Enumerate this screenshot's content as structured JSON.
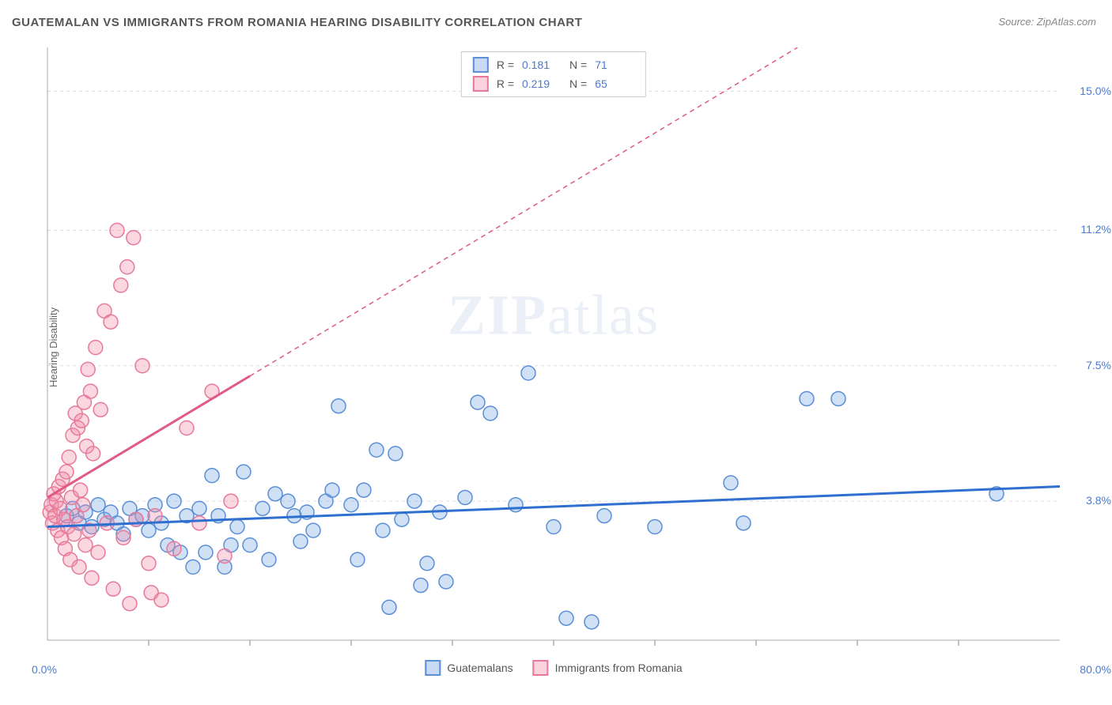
{
  "title": "GUATEMALAN VS IMMIGRANTS FROM ROMANIA HEARING DISABILITY CORRELATION CHART",
  "source": "Source: ZipAtlas.com",
  "watermark_bold": "ZIP",
  "watermark_light": "atlas",
  "chart": {
    "type": "scatter",
    "ylabel": "Hearing Disability",
    "background_color": "#ffffff",
    "grid_color": "#dddddd",
    "axis_color": "#aaaaaa",
    "tick_color": "#888888",
    "label_fontsize": 13,
    "tick_fontsize": 14,
    "value_color": "#4a7bd0",
    "xlim": [
      0,
      80
    ],
    "ylim": [
      0,
      16.2
    ],
    "x_tick_min": "0.0%",
    "x_tick_max": "80.0%",
    "x_minor_ticks": [
      8,
      16,
      24,
      32,
      40,
      48,
      56,
      64,
      72
    ],
    "y_ticks": [
      {
        "v": 3.8,
        "label": "3.8%"
      },
      {
        "v": 7.5,
        "label": "7.5%"
      },
      {
        "v": 11.2,
        "label": "11.2%"
      },
      {
        "v": 15.0,
        "label": "15.0%"
      }
    ],
    "marker_radius": 9,
    "marker_stroke_width": 1.5,
    "trend_line_width": 3,
    "trend_dash": "6,5",
    "series": [
      {
        "name": "Guatemalans",
        "fill": "rgba(120,165,225,0.35)",
        "stroke": "#5b8fd6",
        "trend_stroke": "#2f6fd0",
        "R": "0.181",
        "N": "71",
        "trend": {
          "x1": 0,
          "y1": 3.1,
          "x2": 80,
          "y2": 4.2,
          "dash_from_x": null
        },
        "points": [
          [
            1.5,
            3.4
          ],
          [
            2.0,
            3.6
          ],
          [
            2.5,
            3.2
          ],
          [
            3.0,
            3.5
          ],
          [
            3.5,
            3.1
          ],
          [
            4.0,
            3.7
          ],
          [
            4.5,
            3.3
          ],
          [
            5.0,
            3.5
          ],
          [
            5.5,
            3.2
          ],
          [
            6.0,
            2.9
          ],
          [
            6.5,
            3.6
          ],
          [
            7.0,
            3.3
          ],
          [
            7.5,
            3.4
          ],
          [
            8.0,
            3.0
          ],
          [
            8.5,
            3.7
          ],
          [
            9.0,
            3.2
          ],
          [
            9.5,
            2.6
          ],
          [
            10.0,
            3.8
          ],
          [
            10.5,
            2.4
          ],
          [
            11.0,
            3.4
          ],
          [
            11.5,
            2.0
          ],
          [
            12.0,
            3.6
          ],
          [
            12.5,
            2.4
          ],
          [
            13.0,
            4.5
          ],
          [
            13.5,
            3.4
          ],
          [
            14.0,
            2.0
          ],
          [
            14.5,
            2.6
          ],
          [
            15.0,
            3.1
          ],
          [
            15.5,
            4.6
          ],
          [
            16.0,
            2.6
          ],
          [
            17.0,
            3.6
          ],
          [
            17.5,
            2.2
          ],
          [
            18.0,
            4.0
          ],
          [
            19.0,
            3.8
          ],
          [
            19.5,
            3.4
          ],
          [
            20.0,
            2.7
          ],
          [
            20.5,
            3.5
          ],
          [
            21.0,
            3.0
          ],
          [
            22.0,
            3.8
          ],
          [
            22.5,
            4.1
          ],
          [
            23.0,
            6.4
          ],
          [
            24.0,
            3.7
          ],
          [
            24.5,
            2.2
          ],
          [
            25.0,
            4.1
          ],
          [
            26.0,
            5.2
          ],
          [
            26.5,
            3.0
          ],
          [
            27.0,
            0.9
          ],
          [
            27.5,
            5.1
          ],
          [
            28.0,
            3.3
          ],
          [
            29.0,
            3.8
          ],
          [
            29.5,
            1.5
          ],
          [
            30.0,
            2.1
          ],
          [
            31.0,
            3.5
          ],
          [
            31.5,
            1.6
          ],
          [
            33.0,
            3.9
          ],
          [
            34.0,
            6.5
          ],
          [
            35.0,
            6.2
          ],
          [
            37.0,
            3.7
          ],
          [
            38.0,
            7.3
          ],
          [
            40.0,
            3.1
          ],
          [
            41.0,
            0.6
          ],
          [
            43.0,
            0.5
          ],
          [
            44.0,
            3.4
          ],
          [
            48.0,
            3.1
          ],
          [
            54.0,
            4.3
          ],
          [
            55.0,
            3.2
          ],
          [
            60.0,
            6.6
          ],
          [
            62.5,
            6.6
          ],
          [
            75.0,
            4.0
          ]
        ]
      },
      {
        "name": "Immigrants from Romania",
        "fill": "rgba(240,140,170,0.35)",
        "stroke": "#e77a9a",
        "trend_stroke": "#e05a85",
        "R": "0.219",
        "N": "65",
        "trend": {
          "x1": 0,
          "y1": 3.9,
          "x2": 80,
          "y2": 20.5,
          "dash_from_x": 16
        },
        "points": [
          [
            0.2,
            3.5
          ],
          [
            0.3,
            3.7
          ],
          [
            0.4,
            3.2
          ],
          [
            0.5,
            4.0
          ],
          [
            0.6,
            3.4
          ],
          [
            0.7,
            3.8
          ],
          [
            0.8,
            3.0
          ],
          [
            0.9,
            4.2
          ],
          [
            1.0,
            3.6
          ],
          [
            1.1,
            2.8
          ],
          [
            1.2,
            4.4
          ],
          [
            1.3,
            3.3
          ],
          [
            1.4,
            2.5
          ],
          [
            1.5,
            4.6
          ],
          [
            1.6,
            3.1
          ],
          [
            1.7,
            5.0
          ],
          [
            1.8,
            2.2
          ],
          [
            1.9,
            3.9
          ],
          [
            2.0,
            5.6
          ],
          [
            2.1,
            2.9
          ],
          [
            2.2,
            6.2
          ],
          [
            2.3,
            3.4
          ],
          [
            2.4,
            5.8
          ],
          [
            2.5,
            2.0
          ],
          [
            2.6,
            4.1
          ],
          [
            2.7,
            6.0
          ],
          [
            2.8,
            3.7
          ],
          [
            2.9,
            6.5
          ],
          [
            3.0,
            2.6
          ],
          [
            3.1,
            5.3
          ],
          [
            3.2,
            7.4
          ],
          [
            3.3,
            3.0
          ],
          [
            3.4,
            6.8
          ],
          [
            3.5,
            1.7
          ],
          [
            3.6,
            5.1
          ],
          [
            3.8,
            8.0
          ],
          [
            4.0,
            2.4
          ],
          [
            4.2,
            6.3
          ],
          [
            4.5,
            9.0
          ],
          [
            4.7,
            3.2
          ],
          [
            5.0,
            8.7
          ],
          [
            5.2,
            1.4
          ],
          [
            5.5,
            11.2
          ],
          [
            5.8,
            9.7
          ],
          [
            6.0,
            2.8
          ],
          [
            6.3,
            10.2
          ],
          [
            6.5,
            1.0
          ],
          [
            6.8,
            11.0
          ],
          [
            7.0,
            3.3
          ],
          [
            7.5,
            7.5
          ],
          [
            8.0,
            2.1
          ],
          [
            8.2,
            1.3
          ],
          [
            8.5,
            3.4
          ],
          [
            9.0,
            1.1
          ],
          [
            10.0,
            2.5
          ],
          [
            11.0,
            5.8
          ],
          [
            12.0,
            3.2
          ],
          [
            13.0,
            6.8
          ],
          [
            14.5,
            3.8
          ],
          [
            14.0,
            2.3
          ]
        ]
      }
    ],
    "legend_bottom": [
      {
        "swatch": "blue",
        "label": "Guatemalans"
      },
      {
        "swatch": "pink",
        "label": "Immigrants from Romania"
      }
    ]
  }
}
